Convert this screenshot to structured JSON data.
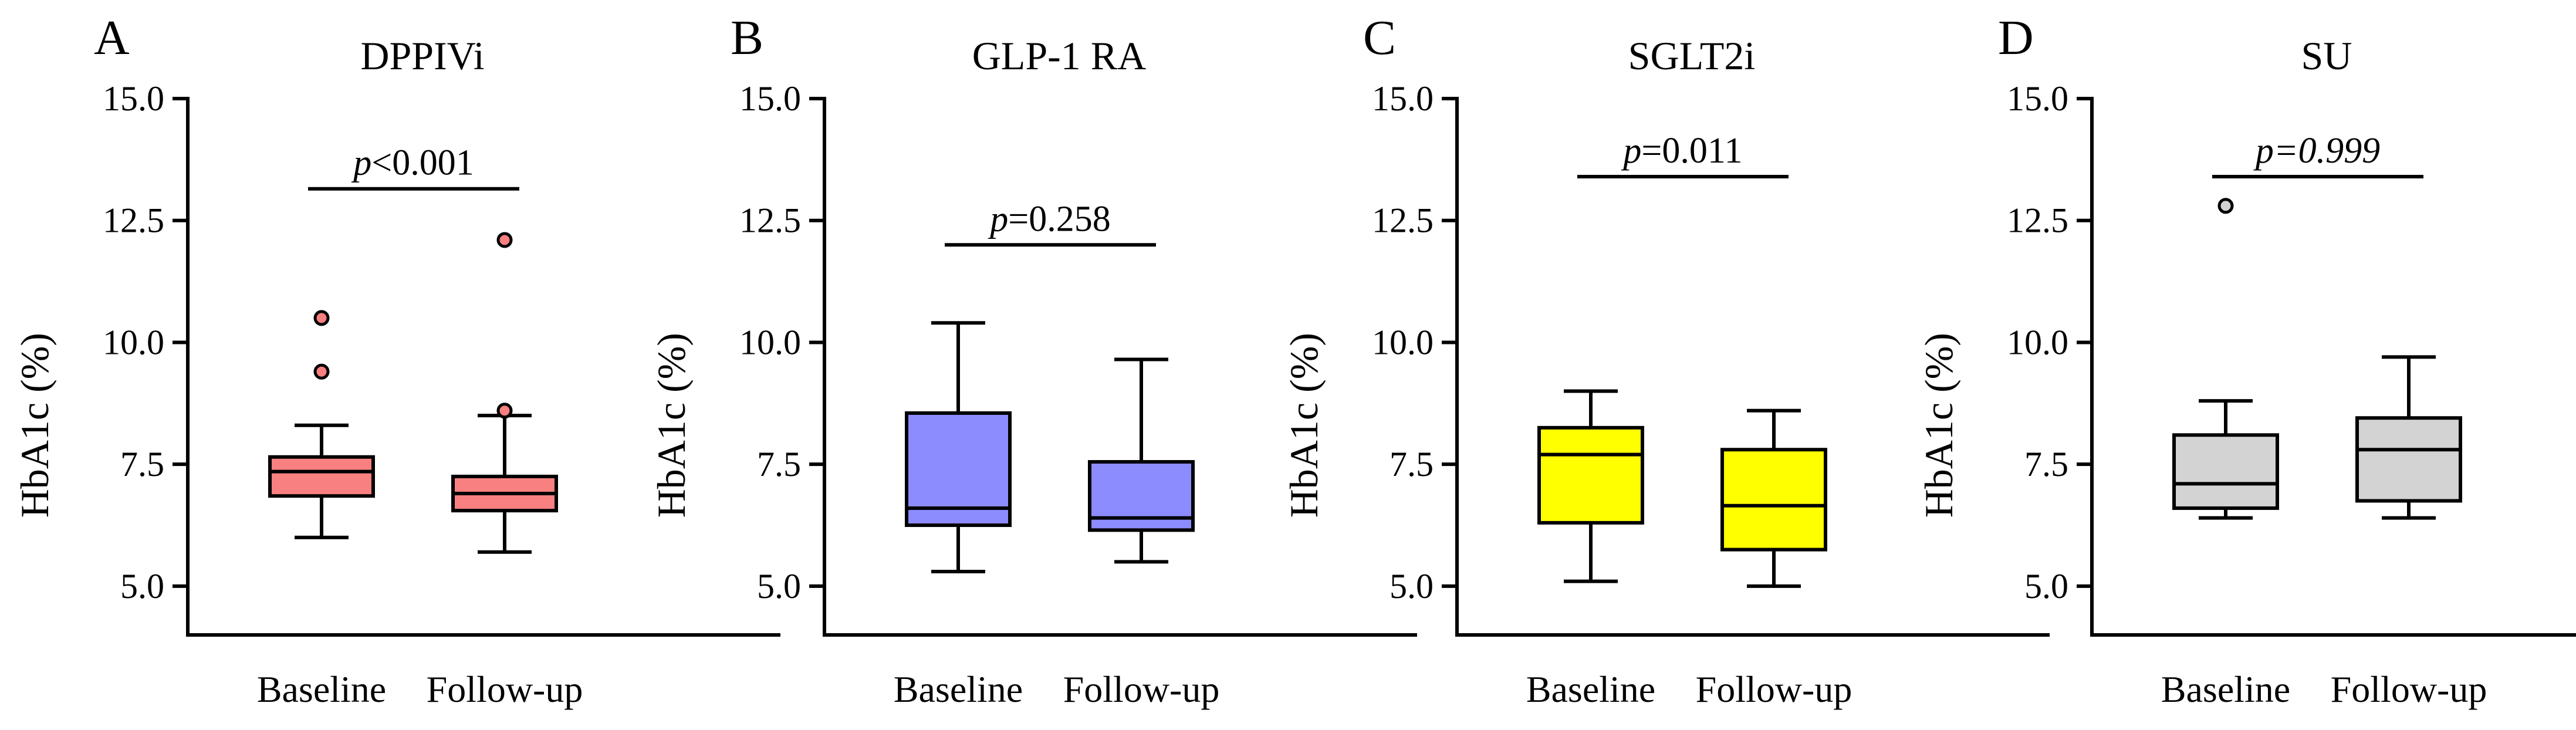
{
  "figure": {
    "panels": [
      {
        "letter": "A",
        "title": "DPPIVi",
        "p_prefix": "p",
        "p_rest": "<0.001",
        "p_italic_value": false
      },
      {
        "letter": "B",
        "title": "GLP-1 RA",
        "p_prefix": "p",
        "p_rest": "=0.258",
        "p_italic_value": false
      },
      {
        "letter": "C",
        "title": "SGLT2i",
        "p_prefix": "p",
        "p_rest": "=0.011",
        "p_italic_value": false
      },
      {
        "letter": "D",
        "title": "SU",
        "p_prefix": "p",
        "p_rest": "=0.999",
        "p_italic_value": true
      }
    ]
  },
  "chart_data": [
    {
      "type": "box",
      "title": "DPPIVi",
      "ylabel": "HbA1c (%)",
      "ylim": [
        4.0,
        15.0
      ],
      "yticks": [
        "5.0",
        "7.5",
        "10.0",
        "12.5",
        "15.0"
      ],
      "categories": [
        "Baseline",
        "Follow-up"
      ],
      "color": "#f88080",
      "boxes": [
        {
          "whisker_low": 6.0,
          "q1": 6.85,
          "median": 7.35,
          "q3": 7.65,
          "whisker_high": 8.3,
          "outliers": [
            9.4,
            10.5
          ]
        },
        {
          "whisker_low": 5.7,
          "q1": 6.55,
          "median": 6.9,
          "q3": 7.25,
          "whisker_high": 8.5,
          "outliers": [
            8.6,
            12.1
          ]
        }
      ],
      "p_value": "p<0.001",
      "bracket_y": 13.15
    },
    {
      "type": "box",
      "title": "GLP-1 RA",
      "ylabel": "HbA1c (%)",
      "ylim": [
        4.0,
        15.0
      ],
      "yticks": [
        "5.0",
        "7.5",
        "10.0",
        "12.5",
        "15.0"
      ],
      "categories": [
        "Baseline",
        "Follow-up"
      ],
      "color": "#8c8cff",
      "boxes": [
        {
          "whisker_low": 5.3,
          "q1": 6.25,
          "median": 6.6,
          "q3": 8.55,
          "whisker_high": 10.4,
          "outliers": []
        },
        {
          "whisker_low": 5.5,
          "q1": 6.15,
          "median": 6.4,
          "q3": 7.55,
          "whisker_high": 9.65,
          "outliers": []
        }
      ],
      "p_value": "p=0.258",
      "bracket_y": 12.0
    },
    {
      "type": "box",
      "title": "SGLT2i",
      "ylabel": "HbA1c (%)",
      "ylim": [
        4.0,
        15.0
      ],
      "yticks": [
        "5.0",
        "7.5",
        "10.0",
        "12.5",
        "15.0"
      ],
      "categories": [
        "Baseline",
        "Follow-up"
      ],
      "color": "#ffff00",
      "boxes": [
        {
          "whisker_low": 5.1,
          "q1": 6.3,
          "median": 7.7,
          "q3": 8.25,
          "whisker_high": 9.0,
          "outliers": []
        },
        {
          "whisker_low": 5.0,
          "q1": 5.75,
          "median": 6.65,
          "q3": 7.8,
          "whisker_high": 8.6,
          "outliers": []
        }
      ],
      "p_value": "p=0.011",
      "bracket_y": 13.4
    },
    {
      "type": "box",
      "title": "SU",
      "ylabel": "HbA1c (%)",
      "ylim": [
        4.0,
        15.0
      ],
      "yticks": [
        "5.0",
        "7.5",
        "10.0",
        "12.5",
        "15.0"
      ],
      "categories": [
        "Baseline",
        "Follow-up"
      ],
      "color": "#d3d3d3",
      "boxes": [
        {
          "whisker_low": 6.4,
          "q1": 6.6,
          "median": 7.1,
          "q3": 8.1,
          "whisker_high": 8.8,
          "outliers": [
            12.8
          ]
        },
        {
          "whisker_low": 6.4,
          "q1": 6.75,
          "median": 7.8,
          "q3": 8.45,
          "whisker_high": 9.7,
          "outliers": []
        }
      ],
      "p_value": "p=0.999",
      "bracket_y": 13.4
    }
  ]
}
